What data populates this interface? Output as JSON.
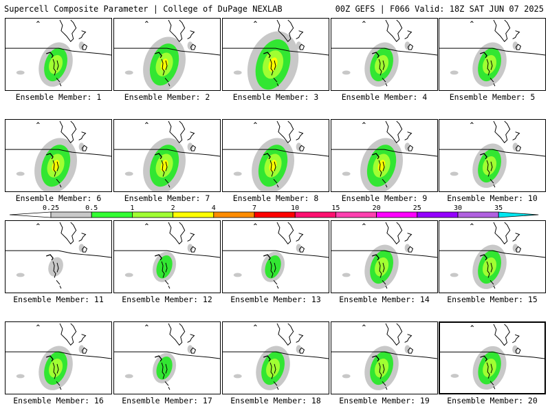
{
  "header": {
    "title_left": "Supercell Composite Parameter | College of DuPage NEXLAB",
    "title_right": "00Z GEFS | F066 Valid: 18Z SAT JUN 07 2025"
  },
  "panels": [
    {
      "label": "Ensemble Member: 1",
      "intensity": 2
    },
    {
      "label": "Ensemble Member: 2",
      "intensity": 3
    },
    {
      "label": "Ensemble Member: 3",
      "intensity": 4
    },
    {
      "label": "Ensemble Member: 4",
      "intensity": 2
    },
    {
      "label": "Ensemble Member: 5",
      "intensity": 2
    },
    {
      "label": "Ensemble Member: 6",
      "intensity": 3
    },
    {
      "label": "Ensemble Member: 7",
      "intensity": 3
    },
    {
      "label": "Ensemble Member: 8",
      "intensity": 3
    },
    {
      "label": "Ensemble Member: 9",
      "intensity": 3
    },
    {
      "label": "Ensemble Member: 10",
      "intensity": 2
    },
    {
      "label": "Ensemble Member: 11",
      "intensity": 0
    },
    {
      "label": "Ensemble Member: 12",
      "intensity": 1
    },
    {
      "label": "Ensemble Member: 13",
      "intensity": 1
    },
    {
      "label": "Ensemble Member: 14",
      "intensity": 2
    },
    {
      "label": "Ensemble Member: 15",
      "intensity": 2
    },
    {
      "label": "Ensemble Member: 16",
      "intensity": 2
    },
    {
      "label": "Ensemble Member: 17",
      "intensity": 1
    },
    {
      "label": "Ensemble Member: 18",
      "intensity": 2
    },
    {
      "label": "Ensemble Member: 19",
      "intensity": 2
    },
    {
      "label": "Ensemble Member: 20",
      "intensity": 2
    }
  ],
  "selected_panel": 20,
  "colorbar": {
    "labels": [
      "0.25",
      "0.5",
      "1",
      "2",
      "4",
      "7",
      "10",
      "15",
      "20",
      "25",
      "30",
      "35"
    ],
    "colors": [
      "#c8c8c8",
      "#32ff32",
      "#a0ff32",
      "#ffff00",
      "#ff8c00",
      "#ff0000",
      "#ff1070",
      "#ff40b0",
      "#ff00ff",
      "#9400ff",
      "#b060e0",
      "#00e6f0"
    ],
    "level_colors": [
      "#c8c8c8",
      "#32e632",
      "#a0ff32",
      "#ffff00"
    ]
  }
}
